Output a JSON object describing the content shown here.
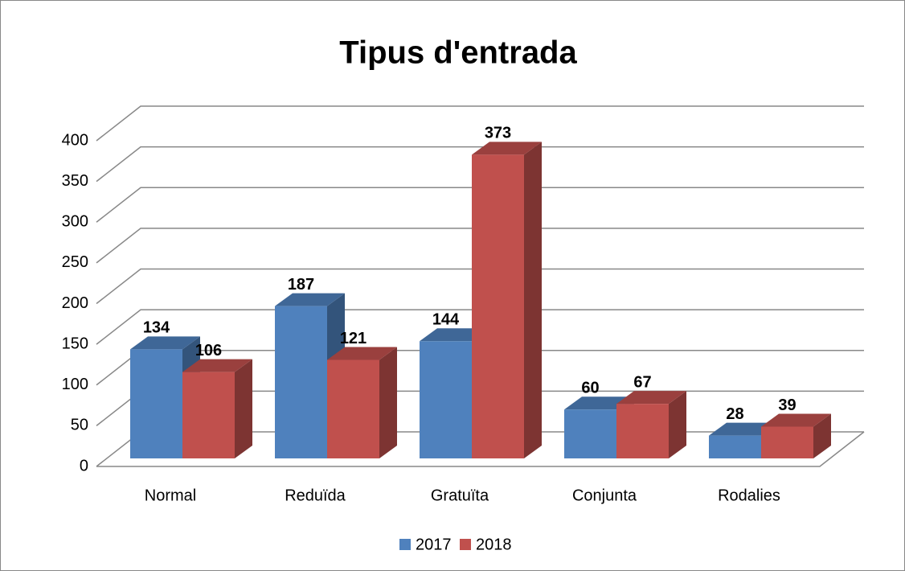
{
  "chart_data": {
    "type": "bar3d",
    "title": "Tipus d'entrada",
    "categories": [
      "Normal",
      "Reduïda",
      "Gratuïta",
      "Conjunta",
      "Rodalies"
    ],
    "series": [
      {
        "name": "2017",
        "color": "#4f81bd",
        "values": [
          134,
          187,
          144,
          60,
          28
        ]
      },
      {
        "name": "2018",
        "color": "#c0504d",
        "values": [
          106,
          121,
          373,
          67,
          39
        ]
      }
    ],
    "ylim": [
      0,
      400
    ],
    "yticks": [
      0,
      50,
      100,
      150,
      200,
      250,
      300,
      350,
      400
    ],
    "grid": true,
    "legend": "bottom"
  }
}
